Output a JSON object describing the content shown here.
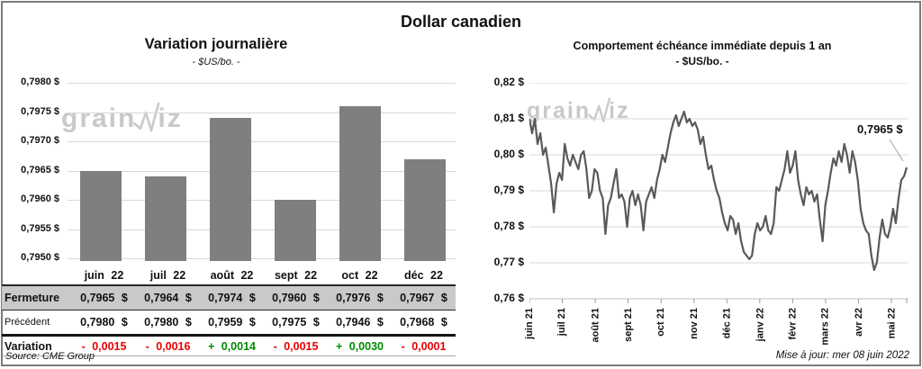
{
  "page": {
    "main_title": "Dollar canadien",
    "source": "Source: CME Group",
    "updated": "Mise à jour: mer 08 juin 2022",
    "watermark": {
      "pre": "grain",
      "post": "iz"
    }
  },
  "colors": {
    "bar": "#7f7f7f",
    "line": "#595959",
    "grid": "#d9d9d9",
    "axis": "#bfbfbf",
    "tick": "#9a9a9a",
    "negative": "#eb0000",
    "positive": "#008a00",
    "table_row_bg": "#c9c9c9",
    "watermark": "#c9c9c9",
    "leader": "#a6a6a6",
    "frame": "#7b7b7b"
  },
  "left_chart": {
    "title": "Variation journalière",
    "subtitle": "- $US/bo. -"
  },
  "right_chart": {
    "title": "Comportement échéance immédiate depuis 1 an",
    "subtitle": "- $US/bo. -",
    "annotation": "0,7965 $"
  },
  "table": {
    "columns": [
      "juin 22",
      "juil 22",
      "août 22",
      "sept 22",
      "oct 22",
      "déc 22"
    ],
    "rows": [
      {
        "label": "Fermeture",
        "values": [
          "0,7965 $",
          "0,7964 $",
          "0,7974 $",
          "0,7960 $",
          "0,7976 $",
          "0,7967 $"
        ],
        "style": "fermeture"
      },
      {
        "label": "Précédent",
        "values": [
          "0,7980 $",
          "0,7980 $",
          "0,7959 $",
          "0,7975 $",
          "0,7946 $",
          "0,7968 $"
        ],
        "style": "precedent"
      },
      {
        "label": "Variation",
        "values": [
          "- 0,0015",
          "- 0,0016",
          "+ 0,0014",
          "- 0,0015",
          "+ 0,0030",
          "- 0,0001"
        ],
        "signs": [
          "neg",
          "neg",
          "pos",
          "neg",
          "pos",
          "neg"
        ],
        "style": "variation"
      }
    ]
  },
  "chart_data": [
    {
      "type": "bar",
      "title": "Variation journalière",
      "subtitle": "- $US/bo. -",
      "categories": [
        "juin 22",
        "juil 22",
        "août 22",
        "sept 22",
        "oct 22",
        "déc 22"
      ],
      "values": [
        0.7965,
        0.7964,
        0.7974,
        0.796,
        0.7976,
        0.7967
      ],
      "ylim": [
        0.795,
        0.798
      ],
      "yticks": [
        {
          "v": 0.798,
          "label": "0,7980 $"
        },
        {
          "v": 0.7975,
          "label": "0,7975 $"
        },
        {
          "v": 0.797,
          "label": "0,7970 $"
        },
        {
          "v": 0.7965,
          "label": "0,7965 $"
        },
        {
          "v": 0.796,
          "label": "0,7960 $"
        },
        {
          "v": 0.7955,
          "label": "0,7955 $"
        },
        {
          "v": 0.795,
          "label": "0,7950 $"
        }
      ],
      "grid": true
    },
    {
      "type": "line",
      "title": "Comportement échéance immédiate depuis 1 an",
      "subtitle": "- $US/bo. -",
      "x_categories": [
        "juin 21",
        "juil 21",
        "août 21",
        "sept 21",
        "oct 21",
        "nov 21",
        "déc 21",
        "janv 22",
        "févr 22",
        "mars 22",
        "avr 22",
        "mai 22"
      ],
      "ylim": [
        0.76,
        0.82
      ],
      "yticks": [
        {
          "v": 0.82,
          "label": "0,82 $"
        },
        {
          "v": 0.81,
          "label": "0,81 $"
        },
        {
          "v": 0.8,
          "label": "0,80 $"
        },
        {
          "v": 0.79,
          "label": "0,79 $"
        },
        {
          "v": 0.78,
          "label": "0,78 $"
        },
        {
          "v": 0.77,
          "label": "0,77 $"
        },
        {
          "v": 0.76,
          "label": "0,76 $"
        }
      ],
      "end_label": "0,7965 $",
      "grid": true,
      "values": [
        0.81,
        0.806,
        0.81,
        0.803,
        0.806,
        0.8,
        0.802,
        0.797,
        0.792,
        0.784,
        0.792,
        0.795,
        0.793,
        0.803,
        0.799,
        0.797,
        0.8,
        0.798,
        0.796,
        0.8,
        0.801,
        0.796,
        0.788,
        0.79,
        0.796,
        0.795,
        0.79,
        0.788,
        0.778,
        0.786,
        0.788,
        0.792,
        0.796,
        0.788,
        0.789,
        0.787,
        0.78,
        0.788,
        0.79,
        0.786,
        0.789,
        0.786,
        0.779,
        0.787,
        0.789,
        0.791,
        0.788,
        0.793,
        0.796,
        0.8,
        0.798,
        0.802,
        0.806,
        0.809,
        0.811,
        0.808,
        0.81,
        0.812,
        0.809,
        0.81,
        0.808,
        0.809,
        0.807,
        0.803,
        0.805,
        0.8,
        0.796,
        0.797,
        0.793,
        0.79,
        0.788,
        0.784,
        0.781,
        0.779,
        0.783,
        0.782,
        0.778,
        0.781,
        0.776,
        0.773,
        0.772,
        0.771,
        0.772,
        0.778,
        0.781,
        0.779,
        0.78,
        0.783,
        0.779,
        0.778,
        0.781,
        0.791,
        0.79,
        0.793,
        0.796,
        0.801,
        0.795,
        0.797,
        0.801,
        0.793,
        0.789,
        0.786,
        0.791,
        0.789,
        0.79,
        0.787,
        0.789,
        0.782,
        0.776,
        0.786,
        0.79,
        0.795,
        0.799,
        0.797,
        0.801,
        0.798,
        0.803,
        0.8,
        0.795,
        0.801,
        0.798,
        0.793,
        0.785,
        0.781,
        0.779,
        0.778,
        0.772,
        0.768,
        0.77,
        0.777,
        0.782,
        0.778,
        0.777,
        0.78,
        0.785,
        0.781,
        0.788,
        0.793,
        0.794,
        0.7965
      ]
    }
  ]
}
